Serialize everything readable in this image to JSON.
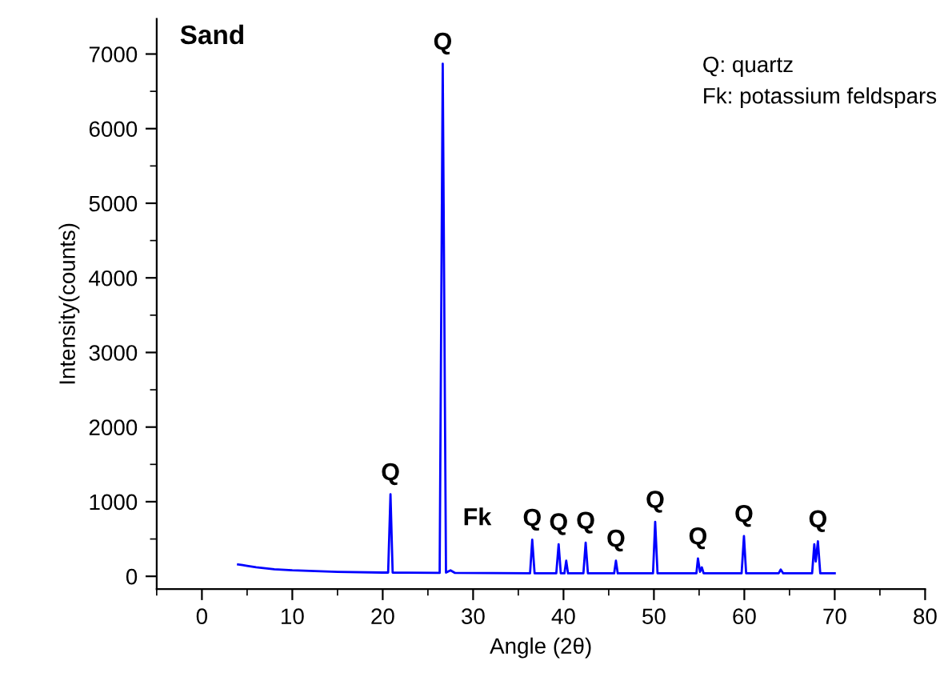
{
  "chart_data": {
    "type": "line",
    "title": "Sand",
    "xlabel": "Angle (2θ)",
    "ylabel": "Intensity(counts)",
    "xlim": [
      -5,
      80
    ],
    "xticks": [
      0,
      10,
      20,
      30,
      40,
      50,
      60,
      70,
      80
    ],
    "ylim": [
      -170,
      7470
    ],
    "yticks": [
      0,
      1000,
      2000,
      3000,
      4000,
      5000,
      6000,
      7000
    ],
    "grid": false,
    "legend": false,
    "marker": "none",
    "line_style": "solid",
    "series": [
      {
        "color": "#0000ff",
        "x": [
          4,
          4.5,
          5,
          6,
          8,
          10,
          15,
          20,
          20.6,
          20.86,
          21.1,
          26.3,
          26.64,
          27.0,
          27.5,
          28,
          36.3,
          36.54,
          36.8,
          39.2,
          39.46,
          39.7,
          40.1,
          40.3,
          40.5,
          42.2,
          42.45,
          42.7,
          45.6,
          45.8,
          46.0,
          49.9,
          50.14,
          50.4,
          54.7,
          54.87,
          55.1,
          55.3,
          55.5,
          59.7,
          59.96,
          60.2,
          63.8,
          64.03,
          64.3,
          67.5,
          67.74,
          67.9,
          68.14,
          68.4,
          70
        ],
        "values": [
          160,
          150,
          140,
          120,
          95,
          80,
          60,
          50,
          50,
          1100,
          50,
          45,
          6870,
          50,
          80,
          45,
          40,
          490,
          40,
          40,
          430,
          40,
          40,
          210,
          40,
          40,
          450,
          40,
          40,
          210,
          40,
          40,
          730,
          40,
          40,
          240,
          60,
          120,
          40,
          40,
          540,
          40,
          40,
          90,
          40,
          40,
          430,
          200,
          470,
          40,
          40
        ]
      }
    ],
    "annotations": [
      {
        "text": "Q",
        "x": 20.86,
        "y": 1100
      },
      {
        "text": "Q",
        "x": 26.64,
        "y": 6870
      },
      {
        "text": "Fk",
        "x": 27.5,
        "y": 80
      },
      {
        "text": "Q",
        "x": 36.54,
        "y": 490
      },
      {
        "text": "Q",
        "x": 39.46,
        "y": 430
      },
      {
        "text": "Q",
        "x": 42.45,
        "y": 450
      },
      {
        "text": "Q",
        "x": 45.8,
        "y": 210
      },
      {
        "text": "Q",
        "x": 50.14,
        "y": 730
      },
      {
        "text": "Q",
        "x": 54.87,
        "y": 240
      },
      {
        "text": "Q",
        "x": 59.96,
        "y": 540
      },
      {
        "text": "Q",
        "x": 68.14,
        "y": 470
      },
      "Q: quartz",
      "Fk: potassium feldspars"
    ]
  }
}
